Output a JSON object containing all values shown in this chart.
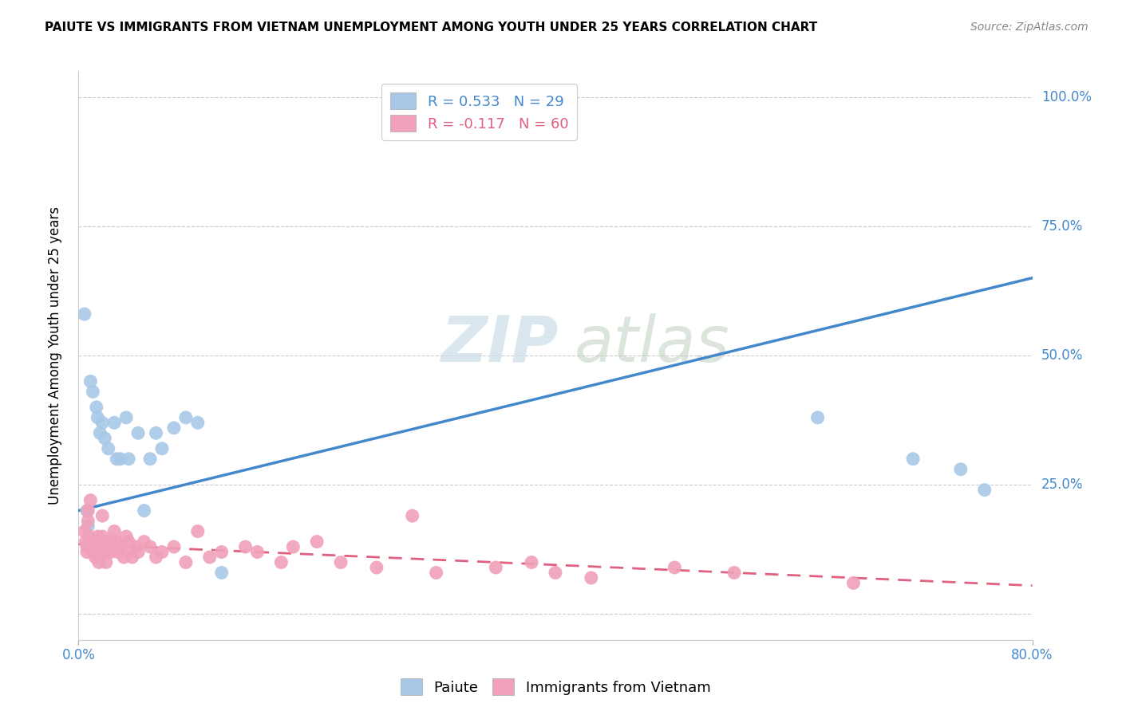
{
  "title": "PAIUTE VS IMMIGRANTS FROM VIETNAM UNEMPLOYMENT AMONG YOUTH UNDER 25 YEARS CORRELATION CHART",
  "source": "Source: ZipAtlas.com",
  "ylabel": "Unemployment Among Youth under 25 years",
  "xlim": [
    0.0,
    0.8
  ],
  "ylim": [
    -0.05,
    1.05
  ],
  "paiute_R": 0.533,
  "paiute_N": 29,
  "vietnam_R": -0.117,
  "vietnam_N": 60,
  "legend_labels": [
    "Paiute",
    "Immigrants from Vietnam"
  ],
  "paiute_color": "#a8c8e8",
  "vietnam_color": "#f0a0b8",
  "paiute_line_color": "#4488cc",
  "vietnam_line_color": "#e06080",
  "watermark_zip": "ZIP",
  "watermark_atlas": "atlas",
  "background_color": "#ffffff",
  "paiute_x": [
    0.005,
    0.007,
    0.008,
    0.01,
    0.012,
    0.015,
    0.016,
    0.018,
    0.02,
    0.022,
    0.025,
    0.03,
    0.032,
    0.035,
    0.04,
    0.042,
    0.05,
    0.055,
    0.06,
    0.065,
    0.07,
    0.08,
    0.09,
    0.1,
    0.12,
    0.62,
    0.7,
    0.74,
    0.76
  ],
  "paiute_y": [
    0.58,
    0.2,
    0.17,
    0.45,
    0.43,
    0.4,
    0.38,
    0.35,
    0.37,
    0.34,
    0.32,
    0.37,
    0.3,
    0.3,
    0.38,
    0.3,
    0.35,
    0.2,
    0.3,
    0.35,
    0.32,
    0.36,
    0.38,
    0.37,
    0.08,
    0.38,
    0.3,
    0.28,
    0.24
  ],
  "vietnam_x": [
    0.005,
    0.006,
    0.007,
    0.007,
    0.008,
    0.008,
    0.009,
    0.01,
    0.01,
    0.012,
    0.013,
    0.014,
    0.015,
    0.016,
    0.017,
    0.018,
    0.02,
    0.02,
    0.022,
    0.022,
    0.023,
    0.025,
    0.027,
    0.028,
    0.03,
    0.032,
    0.033,
    0.035,
    0.038,
    0.04,
    0.042,
    0.043,
    0.045,
    0.048,
    0.05,
    0.055,
    0.06,
    0.065,
    0.07,
    0.08,
    0.09,
    0.1,
    0.11,
    0.12,
    0.14,
    0.15,
    0.17,
    0.18,
    0.2,
    0.22,
    0.25,
    0.28,
    0.3,
    0.35,
    0.38,
    0.4,
    0.43,
    0.5,
    0.55,
    0.65
  ],
  "vietnam_y": [
    0.16,
    0.14,
    0.13,
    0.12,
    0.2,
    0.18,
    0.15,
    0.22,
    0.14,
    0.12,
    0.14,
    0.11,
    0.13,
    0.15,
    0.1,
    0.12,
    0.19,
    0.15,
    0.14,
    0.12,
    0.1,
    0.14,
    0.12,
    0.14,
    0.16,
    0.14,
    0.12,
    0.13,
    0.11,
    0.15,
    0.14,
    0.12,
    0.11,
    0.13,
    0.12,
    0.14,
    0.13,
    0.11,
    0.12,
    0.13,
    0.1,
    0.16,
    0.11,
    0.12,
    0.13,
    0.12,
    0.1,
    0.13,
    0.14,
    0.1,
    0.09,
    0.19,
    0.08,
    0.09,
    0.1,
    0.08,
    0.07,
    0.09,
    0.08,
    0.06
  ],
  "paiute_line_x0": 0.0,
  "paiute_line_y0": 0.2,
  "paiute_line_x1": 0.8,
  "paiute_line_y1": 0.65,
  "vietnam_line_x0": 0.0,
  "vietnam_line_y0": 0.135,
  "vietnam_line_x1": 0.8,
  "vietnam_line_y1": 0.055
}
